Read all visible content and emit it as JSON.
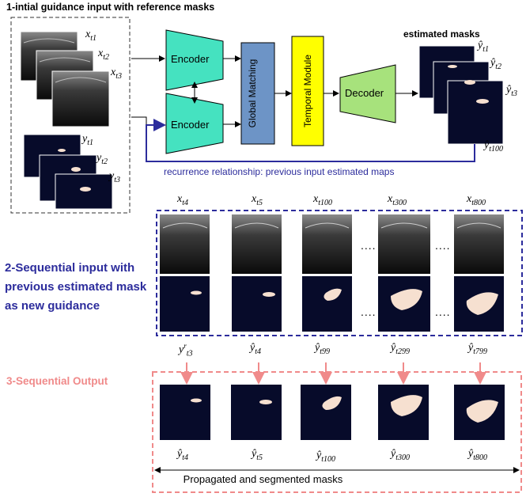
{
  "step1_title": "1-intial guidance input with reference masks",
  "input_labels": [
    "x",
    "x",
    "x"
  ],
  "input_subs": [
    "t1",
    "t2",
    "t3"
  ],
  "mask_labels": [
    "y",
    "y",
    "y"
  ],
  "mask_subs": [
    "t1",
    "t2",
    "t3"
  ],
  "encoder_top": "Encoder",
  "encoder_bottom": "Encoder",
  "global_matching": "Global Matching",
  "temporal_module": "Temporal Module",
  "decoder": "Decoder",
  "estimated_masks_title": "estimated masks",
  "est_labels": [
    "ŷ",
    "ŷ",
    "ŷ",
    "ŷ"
  ],
  "est_subs": [
    "t1",
    "t2",
    "t3",
    "t100"
  ],
  "recurrence_text": "recurrence relationship: previous input estimated maps",
  "step2_title": "2-Sequential input with previous estimated mask as new guidance",
  "seq_labels": [
    "x",
    "x",
    "x",
    "x",
    "x"
  ],
  "seq_subs": [
    "t4",
    "t5",
    "t100",
    "t300",
    "t800"
  ],
  "guidance_labels": [
    "y",
    "ŷ",
    "ŷ",
    "ŷ",
    "ŷ"
  ],
  "guidance_subs": [
    "t3",
    "t4",
    "t99",
    "t299",
    "t799"
  ],
  "guidance_sup0": "r",
  "step3_title": "3-Sequential Output",
  "out_labels": [
    "ŷ",
    "ŷ",
    "ŷ",
    "ŷ",
    "ŷ"
  ],
  "out_subs": [
    "t4",
    "t5",
    "t100",
    "t300",
    "t800"
  ],
  "ellipsis": "....",
  "propagated_text": "Propagated and segmented masks",
  "colors": {
    "encoder": "#45e2c0",
    "global_matching": "#6d94c6",
    "temporal": "#ffff00",
    "decoder": "#a7e27c",
    "mask_bg": "#070b2a",
    "mask_fg": "#f6e0d0",
    "blue_dash": "#2c2c9c",
    "pink": "#f08a8a"
  }
}
